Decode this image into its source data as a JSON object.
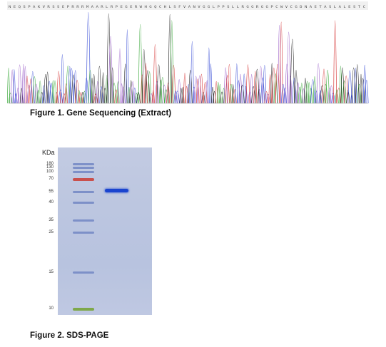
{
  "figure1": {
    "caption": "Figure 1. Gene Sequencing (Extract)",
    "sequence_letters": "NEQSPAKVRSSEPRRRMAARLRPEGERWHGQCHLSFVANVGGLPPSLLRGGRGGPCWVCGDNAETASLALESTC",
    "trace_colors": {
      "A": "#3aa83a",
      "C": "#3a4fd6",
      "G": "#222222",
      "T": "#d63a3a",
      "purple": "#9a5fc8"
    }
  },
  "figure2": {
    "caption": "Figure 2. SDS-PAGE",
    "axis_unit": "KDa",
    "markers": [
      {
        "label": "180",
        "color": "#7d90c8"
      },
      {
        "label": "130",
        "color": "#7d90c8"
      },
      {
        "label": "100",
        "color": "#7d90c8"
      },
      {
        "label": "70",
        "color": "#c9504c"
      },
      {
        "label": "55",
        "color": "#7d90c8"
      },
      {
        "label": "40",
        "color": "#7d90c8"
      },
      {
        "label": "35",
        "color": "#7d90c8"
      },
      {
        "label": "25",
        "color": "#7d90c8"
      },
      {
        "label": "15",
        "color": "#7d90c8"
      },
      {
        "label": "10",
        "color": "#7ea84a"
      }
    ],
    "sample_band_color": "#1a44cf"
  }
}
